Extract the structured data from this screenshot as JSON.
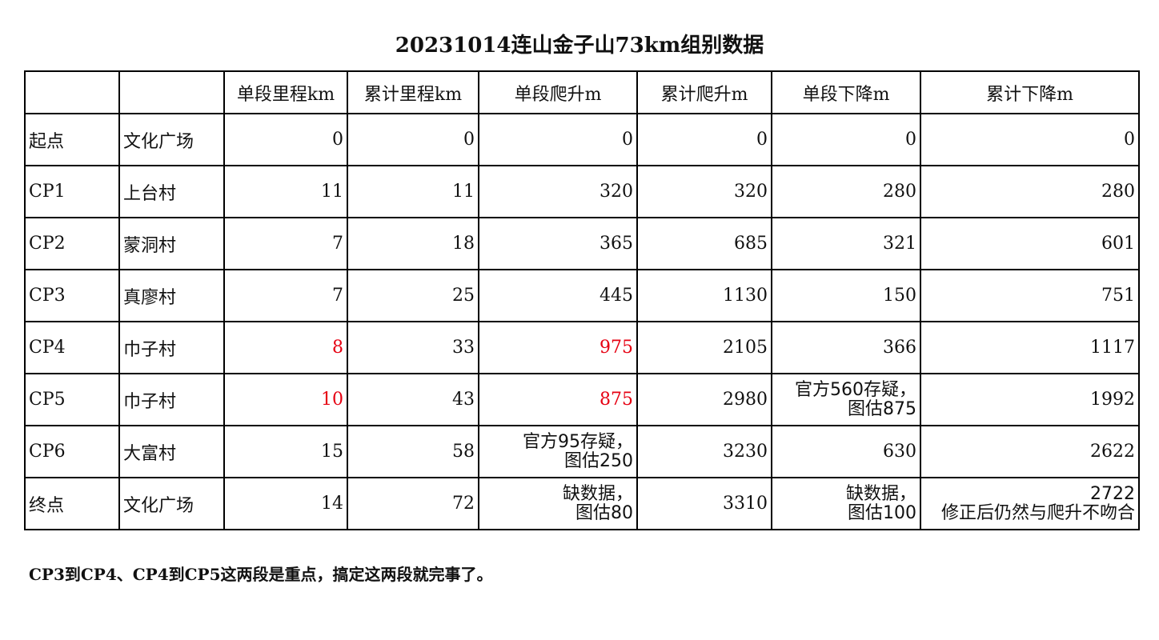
{
  "title": "20231014连山金子山73km组别数据",
  "headers": [
    "",
    "",
    "单段里程km",
    "累计里程km",
    "单段爬升m",
    "累计爬升m",
    "单段下降m",
    "累计下降m"
  ],
  "rows": [
    {
      "point": "起点",
      "place": "文化广场",
      "seg_km": "0",
      "cum_km": "0",
      "seg_up": "0",
      "cum_up": "0",
      "seg_down": "0",
      "cum_down": "0"
    },
    {
      "point": "CP1",
      "place": "上台村",
      "seg_km": "11",
      "cum_km": "11",
      "seg_up": "320",
      "cum_up": "320",
      "seg_down": "280",
      "cum_down": "280"
    },
    {
      "point": "CP2",
      "place": "蒙洞村",
      "seg_km": "7",
      "cum_km": "18",
      "seg_up": "365",
      "cum_up": "685",
      "seg_down": "321",
      "cum_down": "601"
    },
    {
      "point": "CP3",
      "place": "真廖村",
      "seg_km": "7",
      "cum_km": "25",
      "seg_up": "445",
      "cum_up": "1130",
      "seg_down": "150",
      "cum_down": "751"
    },
    {
      "point": "CP4",
      "place": "巾子村",
      "seg_km": "8",
      "cum_km": "33",
      "seg_up": "975",
      "cum_up": "2105",
      "seg_down": "366",
      "cum_down": "1117"
    },
    {
      "point": "CP5",
      "place": "巾子村",
      "seg_km": "10",
      "cum_km": "43",
      "seg_up": "875",
      "cum_up": "2980",
      "seg_down_note": [
        "官方560存疑，",
        "图估875"
      ],
      "cum_down": "1992"
    },
    {
      "point": "CP6",
      "place": "大富村",
      "seg_km": "15",
      "cum_km": "58",
      "seg_up_note": [
        "官方95存疑，",
        "图估250"
      ],
      "cum_up": "3230",
      "seg_down": "630",
      "cum_down": "2622"
    },
    {
      "point": "终点",
      "place": "文化广场",
      "seg_km": "14",
      "cum_km": "72",
      "seg_up_note": [
        "缺数据，",
        "图估80"
      ],
      "cum_up": "3310",
      "seg_down_note": [
        "缺数据，",
        "图估100"
      ],
      "cum_down_note": [
        "2722",
        "修正后仍然与爬升不吻合"
      ]
    }
  ],
  "highlight_color": "#e60012",
  "footnote": "CP3到CP4、CP4到CP5这两段是重点，搞定这两段就完事了。"
}
